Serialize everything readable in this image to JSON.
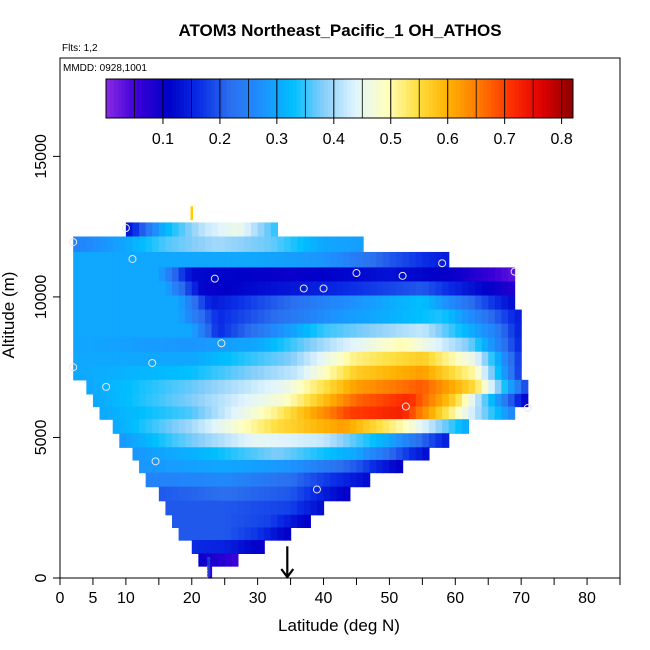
{
  "chart_data": {
    "type": "heatmap",
    "title": "ATOM3 Northeast_Pacific_1 OH_ATHOS",
    "flights_label": "Flts: 1,2",
    "dates_label": "MMDD: 0928,1001",
    "xlabel": "Latitude (deg N)",
    "ylabel": "Altitude (m)",
    "xlim": [
      0,
      85
    ],
    "ylim": [
      0,
      18500
    ],
    "x_ticks": [
      0,
      5,
      10,
      20,
      30,
      40,
      50,
      60,
      70,
      80
    ],
    "x_minor_ticks": [
      15,
      25,
      35,
      45,
      55,
      65,
      75,
      85
    ],
    "y_ticks": [
      0,
      5000,
      10000,
      15000
    ],
    "colorbar": {
      "range": [
        0,
        0.82
      ],
      "ticks": [
        0.1,
        0.2,
        0.3,
        0.4,
        0.5,
        0.6,
        0.7,
        0.8
      ],
      "colors": [
        "#8a2be2",
        "#3a00d8",
        "#0000c8",
        "#0a2de6",
        "#2b6fef",
        "#1e90ff",
        "#00bfff",
        "#87cefa",
        "#e0f4ff",
        "#ffffc0",
        "#ffe040",
        "#ffb000",
        "#ff7800",
        "#ff3000",
        "#e00000",
        "#8b0000"
      ]
    },
    "altitude_layers": [
      {
        "z": 12400,
        "lat_min": 10,
        "lat_max": 33,
        "values": [
          [
            10,
            0.12
          ],
          [
            16,
            0.32
          ],
          [
            22,
            0.42
          ],
          [
            27,
            0.46
          ],
          [
            33,
            0.34
          ]
        ]
      },
      {
        "z": 11900,
        "lat_min": 2,
        "lat_max": 46,
        "values": [
          [
            2,
            0.25
          ],
          [
            10,
            0.3
          ],
          [
            16,
            0.36
          ],
          [
            24,
            0.4
          ],
          [
            32,
            0.37
          ],
          [
            40,
            0.3
          ],
          [
            46,
            0.29
          ]
        ]
      },
      {
        "z": 11300,
        "lat_min": 2,
        "lat_max": 59,
        "values": [
          [
            2,
            0.3
          ],
          [
            15,
            0.3
          ],
          [
            22,
            0.3
          ],
          [
            30,
            0.3
          ],
          [
            40,
            0.28
          ],
          [
            50,
            0.2
          ],
          [
            59,
            0.14
          ]
        ]
      },
      {
        "z": 10800,
        "lat_min": 2,
        "lat_max": 69,
        "values": [
          [
            2,
            0.3
          ],
          [
            15,
            0.3
          ],
          [
            20,
            0.12
          ],
          [
            35,
            0.1
          ],
          [
            50,
            0.13
          ],
          [
            60,
            0.1
          ],
          [
            69,
            0.03
          ]
        ]
      },
      {
        "z": 10300,
        "lat_min": 2,
        "lat_max": 69,
        "values": [
          [
            2,
            0.3
          ],
          [
            16,
            0.3
          ],
          [
            22,
            0.1
          ],
          [
            40,
            0.15
          ],
          [
            55,
            0.2
          ],
          [
            68,
            0.08
          ]
        ]
      },
      {
        "z": 9800,
        "lat_min": 2,
        "lat_max": 69,
        "values": [
          [
            2,
            0.3
          ],
          [
            18,
            0.3
          ],
          [
            23,
            0.14
          ],
          [
            40,
            0.25
          ],
          [
            55,
            0.33
          ],
          [
            69,
            0.12
          ]
        ]
      },
      {
        "z": 9300,
        "lat_min": 2,
        "lat_max": 70,
        "values": [
          [
            2,
            0.3
          ],
          [
            18,
            0.3
          ],
          [
            24,
            0.16
          ],
          [
            42,
            0.28
          ],
          [
            58,
            0.34
          ],
          [
            70,
            0.14
          ]
        ]
      },
      {
        "z": 8800,
        "lat_min": 2,
        "lat_max": 70,
        "values": [
          [
            2,
            0.3
          ],
          [
            20,
            0.3
          ],
          [
            24,
            0.16
          ],
          [
            40,
            0.35
          ],
          [
            55,
            0.42
          ],
          [
            66,
            0.25
          ],
          [
            70,
            0.14
          ]
        ]
      },
      {
        "z": 8300,
        "lat_min": 2,
        "lat_max": 70,
        "values": [
          [
            2,
            0.3
          ],
          [
            20,
            0.28
          ],
          [
            30,
            0.3
          ],
          [
            42,
            0.42
          ],
          [
            52,
            0.5
          ],
          [
            62,
            0.38
          ],
          [
            70,
            0.15
          ]
        ]
      },
      {
        "z": 7800,
        "lat_min": 2,
        "lat_max": 70,
        "values": [
          [
            2,
            0.3
          ],
          [
            20,
            0.3
          ],
          [
            35,
            0.38
          ],
          [
            45,
            0.52
          ],
          [
            55,
            0.57
          ],
          [
            63,
            0.45
          ],
          [
            70,
            0.16
          ]
        ]
      },
      {
        "z": 7300,
        "lat_min": 2,
        "lat_max": 70,
        "values": [
          [
            2,
            0.3
          ],
          [
            20,
            0.33
          ],
          [
            36,
            0.42
          ],
          [
            45,
            0.57
          ],
          [
            55,
            0.62
          ],
          [
            63,
            0.5
          ],
          [
            70,
            0.16
          ]
        ]
      },
      {
        "z": 6800,
        "lat_min": 4,
        "lat_max": 71,
        "values": [
          [
            4,
            0.3
          ],
          [
            20,
            0.37
          ],
          [
            34,
            0.45
          ],
          [
            45,
            0.62
          ],
          [
            55,
            0.68
          ],
          [
            63,
            0.55
          ],
          [
            71,
            0.17
          ]
        ]
      },
      {
        "z": 6300,
        "lat_min": 5,
        "lat_max": 71,
        "values": [
          [
            5,
            0.3
          ],
          [
            20,
            0.38
          ],
          [
            34,
            0.48
          ],
          [
            45,
            0.67
          ],
          [
            53,
            0.72
          ],
          [
            60,
            0.56
          ],
          [
            66,
            0.3
          ],
          [
            71,
            0.1
          ]
        ]
      },
      {
        "z": 5900,
        "lat_min": 6,
        "lat_max": 69,
        "values": [
          [
            6,
            0.3
          ],
          [
            20,
            0.36
          ],
          [
            33,
            0.52
          ],
          [
            44,
            0.7
          ],
          [
            52,
            0.73
          ],
          [
            60,
            0.5
          ],
          [
            69,
            0.25
          ]
        ]
      },
      {
        "z": 5400,
        "lat_min": 8,
        "lat_max": 62,
        "values": [
          [
            8,
            0.3
          ],
          [
            20,
            0.4
          ],
          [
            33,
            0.55
          ],
          [
            43,
            0.62
          ],
          [
            52,
            0.5
          ],
          [
            62,
            0.3
          ]
        ]
      },
      {
        "z": 4900,
        "lat_min": 9,
        "lat_max": 59,
        "values": [
          [
            9,
            0.28
          ],
          [
            18,
            0.36
          ],
          [
            30,
            0.45
          ],
          [
            40,
            0.42
          ],
          [
            50,
            0.3
          ],
          [
            59,
            0.14
          ]
        ]
      },
      {
        "z": 4400,
        "lat_min": 11,
        "lat_max": 56,
        "values": [
          [
            11,
            0.28
          ],
          [
            22,
            0.32
          ],
          [
            33,
            0.38
          ],
          [
            45,
            0.3
          ],
          [
            56,
            0.12
          ]
        ]
      },
      {
        "z": 4000,
        "lat_min": 12,
        "lat_max": 52,
        "values": [
          [
            12,
            0.28
          ],
          [
            25,
            0.3
          ],
          [
            35,
            0.28
          ],
          [
            45,
            0.2
          ],
          [
            52,
            0.1
          ]
        ]
      },
      {
        "z": 3500,
        "lat_min": 13,
        "lat_max": 47,
        "values": [
          [
            13,
            0.25
          ],
          [
            25,
            0.26
          ],
          [
            35,
            0.22
          ],
          [
            47,
            0.12
          ]
        ]
      },
      {
        "z": 3000,
        "lat_min": 15,
        "lat_max": 44,
        "values": [
          [
            15,
            0.2
          ],
          [
            25,
            0.22
          ],
          [
            35,
            0.2
          ],
          [
            44,
            0.1
          ]
        ]
      },
      {
        "z": 2500,
        "lat_min": 16,
        "lat_max": 40,
        "values": [
          [
            16,
            0.2
          ],
          [
            25,
            0.2
          ],
          [
            35,
            0.18
          ],
          [
            40,
            0.12
          ]
        ]
      },
      {
        "z": 2000,
        "lat_min": 17,
        "lat_max": 38,
        "values": [
          [
            17,
            0.2
          ],
          [
            25,
            0.2
          ],
          [
            32,
            0.18
          ],
          [
            38,
            0.1
          ]
        ]
      },
      {
        "z": 1600,
        "lat_min": 18,
        "lat_max": 35,
        "values": [
          [
            18,
            0.2
          ],
          [
            25,
            0.2
          ],
          [
            30,
            0.17
          ],
          [
            35,
            0.1
          ]
        ]
      },
      {
        "z": 1100,
        "lat_min": 20,
        "lat_max": 31,
        "values": [
          [
            20,
            0.16
          ],
          [
            25,
            0.15
          ],
          [
            31,
            0.1
          ]
        ]
      },
      {
        "z": 650,
        "lat_min": 21,
        "lat_max": 27,
        "values": [
          [
            21,
            0.1
          ],
          [
            24,
            0.08
          ],
          [
            27,
            0.05
          ]
        ]
      },
      {
        "z": 200,
        "lat_min": 22.5,
        "lat_max": 23,
        "values": [
          [
            22.5,
            0.06
          ],
          [
            23,
            0.06
          ]
        ]
      }
    ],
    "sample_points": [
      [
        2,
        11950
      ],
      [
        10,
        12450
      ],
      [
        11,
        11350
      ],
      [
        2,
        7500
      ],
      [
        7,
        6800
      ],
      [
        14,
        7650
      ],
      [
        14.5,
        4150
      ],
      [
        23.5,
        10650
      ],
      [
        24.5,
        8350
      ],
      [
        37,
        10300
      ],
      [
        40,
        10300
      ],
      [
        45,
        10850
      ],
      [
        52,
        10750
      ],
      [
        58,
        11200
      ],
      [
        69,
        10900
      ],
      [
        52.5,
        6100
      ],
      [
        71,
        6050
      ],
      [
        39,
        3150
      ]
    ],
    "markers": [
      {
        "type": "tick",
        "x": 20,
        "y": 12800,
        "color": "#ffd000"
      },
      {
        "type": "arrow",
        "x": 34.5,
        "y_top": 700,
        "y_bottom": 0,
        "color": "#000000"
      }
    ]
  }
}
